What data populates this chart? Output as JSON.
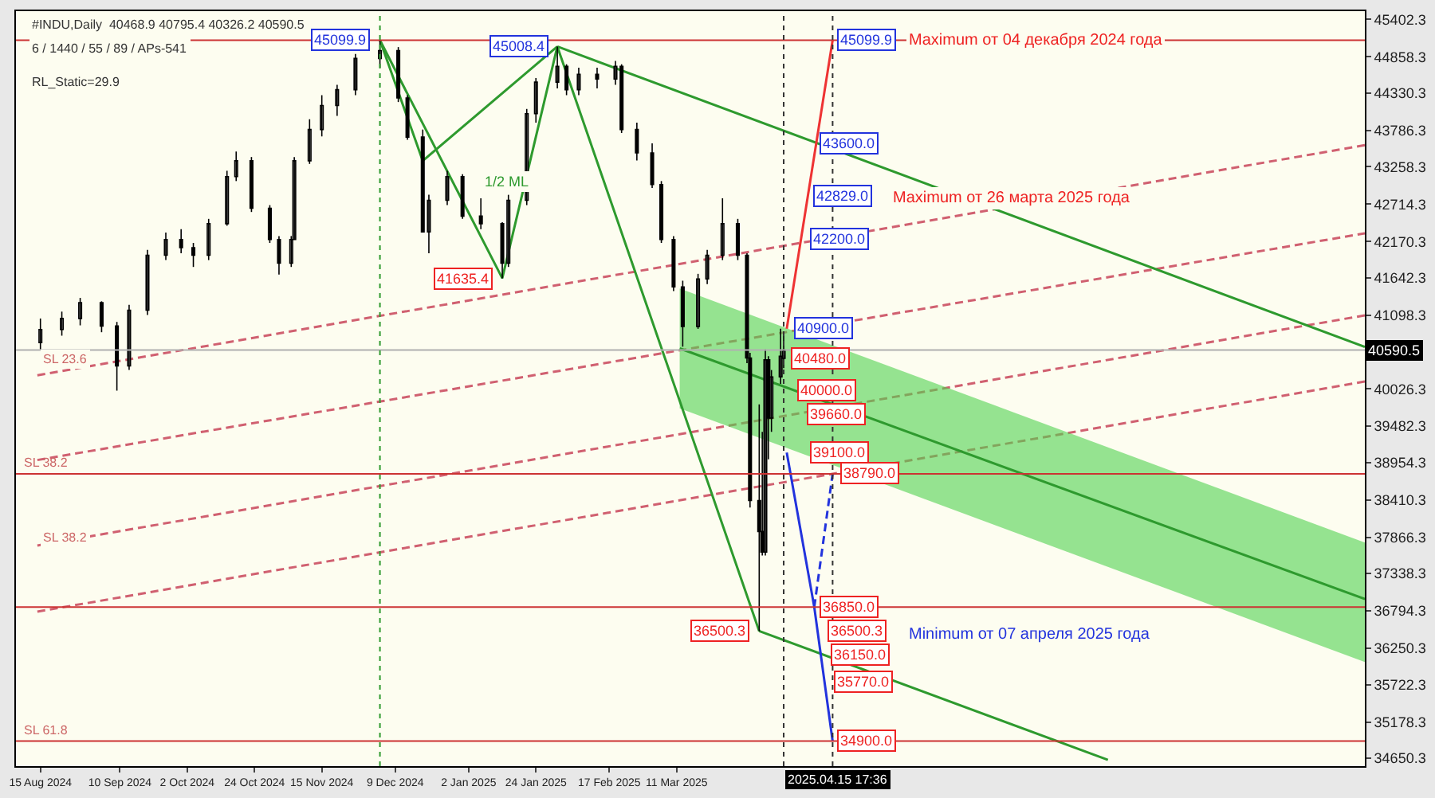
{
  "chart_data": {
    "type": "candlestick",
    "xlim": [
      "2024-08-07",
      "2025-10-22"
    ],
    "xticks": [
      {
        "value": "2024-08-15",
        "label": "15 Aug 2024"
      },
      {
        "value": "2024-09-10",
        "label": "10 Sep 2024"
      },
      {
        "value": "2024-10-02",
        "label": "2 Oct 2024"
      },
      {
        "value": "2024-10-24",
        "label": "24 Oct 2024"
      },
      {
        "value": "2024-11-15",
        "label": "15 Nov 2024"
      },
      {
        "value": "2024-12-09",
        "label": "9 Dec 2024"
      },
      {
        "value": "2025-01-02",
        "label": "2 Jan 2025"
      },
      {
        "value": "2025-01-24",
        "label": "24 Jan 2025"
      },
      {
        "value": "2025-02-17",
        "label": "17 Feb 2025"
      },
      {
        "value": "2025-03-11",
        "label": "11 Mar 2025"
      }
    ],
    "ylim": [
      34535,
      45523
    ],
    "yticks": [
      45402.3,
      44858.3,
      44330.3,
      43786.3,
      43258.3,
      42714.3,
      42170.3,
      41642.3,
      41098.3,
      40026.3,
      39482.3,
      38954.3,
      38410.3,
      37866.3,
      37338.3,
      36794.3,
      36250.3,
      35722.3,
      35178.3,
      34650.3
    ],
    "grid": false,
    "marker": "none",
    "series": [
      {
        "type": "line",
        "color": "#d06070",
        "line_style": "dashed",
        "x": [
          "2024-08-14",
          "2025-10-22"
        ],
        "values": [
          40224,
          43573
        ]
      },
      {
        "type": "line",
        "color": "#d06070",
        "line_style": "dashed",
        "x": [
          "2024-08-14",
          "2025-10-22"
        ],
        "values": [
          38990,
          42290
        ]
      },
      {
        "type": "line",
        "color": "#d06070",
        "line_style": "dashed",
        "x": [
          "2024-08-14",
          "2025-10-22"
        ],
        "values": [
          37746,
          41096
        ]
      },
      {
        "type": "line",
        "color": "#d06070",
        "line_style": "dashed",
        "x": [
          "2024-08-14",
          "2025-10-22"
        ],
        "values": [
          36783,
          40133
        ]
      },
      {
        "type": "line",
        "color": "#2e9a2e",
        "line_style": "solid",
        "x": [
          "2025-03-12",
          "2025-10-22"
        ],
        "values": [
          40614,
          36967
        ],
        "lower": [
          39743,
          36050
        ],
        "upper": [
          41486,
          37790
        ]
      },
      {
        "type": "line",
        "color": "#2e9a2e",
        "line_style": "solid",
        "x": [
          "2024-12-04",
          "2024-12-18",
          "2025-01-31"
        ],
        "values": [
          45099.9,
          43345,
          45008.4
        ]
      },
      {
        "type": "line",
        "color": "#2e9a2e",
        "line_style": "solid",
        "x": [
          "2024-12-04",
          "2025-01-13",
          "2025-01-31",
          "2025-04-07"
        ],
        "values": [
          45099.9,
          41635.4,
          45008.4,
          36500.3
        ]
      },
      {
        "type": "line",
        "color": "#2e9a2e",
        "line_style": "solid",
        "x": [
          "2025-01-31",
          "2025-10-22"
        ],
        "values": [
          45008.4,
          40637
        ]
      },
      {
        "type": "line",
        "color": "#2e9a2e",
        "line_style": "solid",
        "x": [
          "2025-04-07",
          "2025-07-30"
        ],
        "values": [
          36500.3,
          34627
        ]
      },
      {
        "type": "line",
        "color": "#ee3333",
        "line_style": "solid",
        "x": [
          "2025-04-16",
          "2025-05-01"
        ],
        "values": [
          40900,
          45099.9
        ]
      },
      {
        "type": "line",
        "color": "#2233dd",
        "line_style": "solid",
        "x": [
          "2025-04-16",
          "2025-04-25",
          "2025-05-01"
        ],
        "values": [
          39100,
          36850,
          34900
        ]
      },
      {
        "type": "line",
        "color": "#2233dd",
        "line_style": "dashed",
        "x": [
          "2025-04-25",
          "2025-05-01"
        ],
        "values": [
          36850,
          38790
        ]
      },
      {
        "color": "#000000",
        "x": [
          "2024-08-15",
          "2024-08-22",
          "2024-08-28",
          "2024-09-04",
          "2024-09-09",
          "2024-09-13",
          "2024-09-19",
          "2024-09-25",
          "2024-09-30",
          "2024-10-04",
          "2024-10-09",
          "2024-10-15",
          "2024-10-18",
          "2024-10-23",
          "2024-10-29",
          "2024-11-01",
          "2024-11-05",
          "2024-11-06",
          "2024-11-11",
          "2024-11-15",
          "2024-11-20",
          "2024-11-26",
          "2024-12-04",
          "2024-12-10",
          "2024-12-13",
          "2024-12-18",
          "2024-12-20",
          "2024-12-26",
          "2024-12-31",
          "2025-01-06",
          "2025-01-13",
          "2025-01-15",
          "2025-01-21",
          "2025-01-24",
          "2025-01-31",
          "2025-02-03",
          "2025-02-07",
          "2025-02-13",
          "2025-02-19",
          "2025-02-21",
          "2025-02-26",
          "2025-03-03",
          "2025-03-06",
          "2025-03-10",
          "2025-03-13",
          "2025-03-18",
          "2025-03-21",
          "2025-03-26",
          "2025-03-31",
          "2025-04-03",
          "2025-04-04",
          "2025-04-07",
          "2025-04-08",
          "2025-04-09",
          "2025-04-10",
          "2025-04-11",
          "2025-04-14",
          "2025-04-15"
        ],
        "ohlc": [
          [
            40700,
            41050,
            40600,
            40890
          ],
          [
            40890,
            41150,
            40800,
            41050
          ],
          [
            41050,
            41350,
            40950,
            41280
          ],
          [
            41280,
            41300,
            40850,
            40940
          ],
          [
            40940,
            41000,
            40000,
            40360
          ],
          [
            40360,
            41250,
            40300,
            41170
          ],
          [
            41170,
            42050,
            41100,
            41970
          ],
          [
            41970,
            42300,
            41900,
            42200
          ],
          [
            42200,
            42350,
            42000,
            42080
          ],
          [
            42080,
            42150,
            41800,
            41970
          ],
          [
            41970,
            42500,
            41900,
            42430
          ],
          [
            42430,
            43200,
            42400,
            43115
          ],
          [
            43115,
            43480,
            43050,
            43345
          ],
          [
            43345,
            43400,
            42600,
            42655
          ],
          [
            42655,
            42700,
            42150,
            42200
          ],
          [
            42200,
            42250,
            41690,
            41855
          ],
          [
            41855,
            42250,
            41800,
            42200
          ],
          [
            42200,
            43400,
            42200,
            43345
          ],
          [
            43345,
            43950,
            43300,
            43800
          ],
          [
            43800,
            44300,
            43700,
            44150
          ],
          [
            44150,
            44450,
            44000,
            44380
          ],
          [
            44380,
            44900,
            44300,
            44835
          ],
          [
            44835,
            45099.9,
            44700,
            44950
          ],
          [
            44950,
            45000,
            44200,
            44260
          ],
          [
            44260,
            44300,
            43650,
            43690
          ],
          [
            43690,
            43800,
            42300,
            42310
          ],
          [
            42310,
            42850,
            42000,
            42770
          ],
          [
            42770,
            43200,
            42700,
            43115
          ],
          [
            43115,
            43150,
            42500,
            42540
          ],
          [
            42540,
            42800,
            42350,
            42430
          ],
          [
            42430,
            42450,
            41635.4,
            41855
          ],
          [
            41855,
            42850,
            41800,
            42770
          ],
          [
            42770,
            44100,
            42700,
            44030
          ],
          [
            44030,
            44550,
            43900,
            44490
          ],
          [
            44490,
            45008.4,
            44400,
            44720
          ],
          [
            44720,
            44750,
            44300,
            44380
          ],
          [
            44380,
            44700,
            44300,
            44605
          ],
          [
            44605,
            44700,
            44400,
            44535
          ],
          [
            44535,
            44800,
            44450,
            44720
          ],
          [
            44720,
            44750,
            43750,
            43800
          ],
          [
            43800,
            43900,
            43350,
            43460
          ],
          [
            43460,
            43600,
            42950,
            43000
          ],
          [
            43000,
            43050,
            42150,
            42200
          ],
          [
            42200,
            42250,
            41450,
            41510
          ],
          [
            41510,
            41600,
            40640,
            40935
          ],
          [
            40935,
            41700,
            40900,
            41625
          ],
          [
            41625,
            42050,
            41550,
            41970
          ],
          [
            41970,
            42800,
            41900,
            42430
          ],
          [
            42430,
            42500,
            41900,
            41970
          ],
          [
            41970,
            42000,
            40400,
            40475
          ],
          [
            40475,
            40550,
            38300,
            38400
          ],
          [
            38400,
            39800,
            36500.3,
            37950
          ],
          [
            37950,
            39400,
            37600,
            37650
          ],
          [
            37650,
            40600,
            37600,
            40450
          ],
          [
            40450,
            40500,
            39000,
            39600
          ],
          [
            39600,
            40300,
            39400,
            40200
          ],
          [
            40200,
            40900,
            40100,
            40500
          ],
          [
            40468.9,
            40795.4,
            40326.2,
            40590.5
          ]
        ]
      }
    ],
    "ref_lines": [
      {
        "axis": "y",
        "value": 45099.9,
        "label": null,
        "color": "#cc3333",
        "line_style": "solid"
      },
      {
        "axis": "y",
        "value": 38790,
        "label": "SL 38.2",
        "color": "#cc3333",
        "line_style": "solid"
      },
      {
        "axis": "y",
        "value": 36850,
        "label": null,
        "color": "#cc3333",
        "line_style": "solid"
      },
      {
        "axis": "y",
        "value": 34900,
        "label": "SL 61.8",
        "color": "#cc3333",
        "line_style": "solid"
      },
      {
        "axis": "y",
        "value": 40590.5,
        "label": "40590.5",
        "color": "#b0b0b0",
        "line_style": "solid"
      },
      {
        "axis": "x",
        "value": "2024-12-04",
        "label": null,
        "color": "#2e9a2e",
        "line_style": "dotted"
      },
      {
        "axis": "x",
        "value": "2025-04-15",
        "label": null,
        "color": "#333333",
        "line_style": "dotted"
      },
      {
        "axis": "x",
        "value": "2025-05-01",
        "label": null,
        "color": "#333333",
        "line_style": "dotted"
      }
    ],
    "annotations": [
      "#INDU,Daily  40468.9 40795.4 40326.2 40590.5",
      "6 / 1440 / 55 / 89 / APs-541",
      "RL_Static=29.9",
      "2025.04.15 17:36",
      "Minimum от 07 апреля 2025 года",
      "1/2 ML",
      "Maximum от 26 марта 2025 года",
      {
        "text": "45099.9",
        "x": "2024-12-04",
        "y": 45099.9
      },
      {
        "text": "45008.4",
        "x": "2025-01-31",
        "y": 45008.4
      },
      {
        "text": "41635.4",
        "x": "2025-01-13",
        "y": 41635.4
      },
      {
        "text": "36500.3",
        "x": "2025-04-07",
        "y": 36500.3
      },
      {
        "text": "45099.9",
        "x": "2025-05-01",
        "y": 45099.9
      },
      {
        "text": "43600.0",
        "x": "2025-04-25",
        "y": 43600
      },
      {
        "text": "42829.0",
        "x": "2025-04-23",
        "y": 42829
      },
      {
        "text": "42200.0",
        "x": "2025-04-22",
        "y": 42200
      },
      {
        "text": "40900.0",
        "x": "2025-04-17",
        "y": 40900
      },
      {
        "text": "40480.0",
        "x": "2025-04-16",
        "y": 40480
      },
      {
        "text": "40000.0",
        "x": "2025-04-18",
        "y": 40000
      },
      {
        "text": "39660.0",
        "x": "2025-04-21",
        "y": 39660
      },
      {
        "text": "39100.0",
        "x": "2025-04-22",
        "y": 39100
      },
      {
        "text": "38790.0",
        "x": "2025-05-02",
        "y": 38790
      },
      {
        "text": "36850.0",
        "x": "2025-04-25",
        "y": 36850
      },
      {
        "text": "36500.3",
        "x": "2025-04-28",
        "y": 36500.3
      },
      {
        "text": "36150.0",
        "x": "2025-04-29",
        "y": 36150
      },
      {
        "text": "35770.0",
        "x": "2025-04-30",
        "y": 35770
      },
      {
        "text": "34900.0",
        "x": "2025-05-01",
        "y": 34900
      },
      {
        "text": "Maximum от 04 декабря 2024 года",
        "x": "2025-05-25",
        "y": 45099.9
      },
      {
        "text": "SL 23.6",
        "x": "2024-08-15",
        "y": 40300
      },
      {
        "text": "SL 38.2",
        "x": "2024-08-15",
        "y": 37700
      }
    ]
  }
}
